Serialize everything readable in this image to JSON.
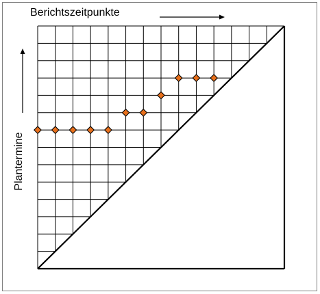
{
  "diagram": {
    "x_axis_label": "Berichtszeitpunkte",
    "y_axis_label": "Plantermine",
    "grid": {
      "columns": 14,
      "rows": 14
    },
    "colors": {
      "grid_line": "#000000",
      "marker_fill": "#e8701c",
      "marker_stroke": "#000000",
      "frame": "#7f7f7f"
    },
    "milestones": [
      {
        "report": 0,
        "plan": 8
      },
      {
        "report": 1,
        "plan": 8
      },
      {
        "report": 2,
        "plan": 8
      },
      {
        "report": 3,
        "plan": 8
      },
      {
        "report": 4,
        "plan": 8
      },
      {
        "report": 5,
        "plan": 9
      },
      {
        "report": 6,
        "plan": 9
      },
      {
        "report": 7,
        "plan": 10
      },
      {
        "report": 8,
        "plan": 11
      },
      {
        "report": 9,
        "plan": 11
      },
      {
        "report": 10,
        "plan": 11
      }
    ]
  }
}
